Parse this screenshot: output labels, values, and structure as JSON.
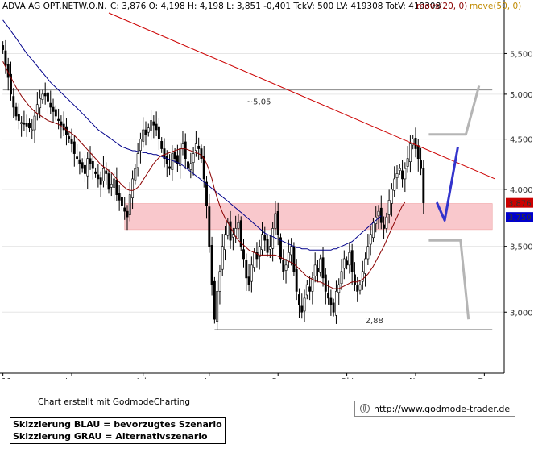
{
  "header": {
    "instrument": "ADVA AG OPT.NETW.O.N.",
    "quote": "C: 3,876  O: 4,198  H: 4,198  L: 3,851  -0,401  TckV: 500  LV: 419308  TotV: 419308",
    "mov1": "movs(20, 0)",
    "mov2": "move(50, 0)"
  },
  "colors": {
    "price": "#000000",
    "ma20": "#8b0000",
    "ma50": "#00008b",
    "trendline": "#cc0000",
    "zone": "#f9c8cc",
    "blue_scenario": "#3333cc",
    "grey_scenario": "#b5b5b5",
    "mov1_label": "#8b0000",
    "mov2_label": "#c08a00",
    "price_tag_red": "#cc0000",
    "price_tag_blue": "#0000cc"
  },
  "chart_data": {
    "type": "candlestick",
    "y_axis": {
      "min": 2.6,
      "max": 6.05,
      "scale": "log",
      "ticks": [
        "5,500",
        "5,000",
        "4,500",
        "4,000",
        "3,500",
        "3,000"
      ],
      "tick_values": [
        5.5,
        5.0,
        4.5,
        4.0,
        3.5,
        3.0
      ]
    },
    "x_axis": {
      "labels": [
        "11",
        "Jun",
        "Jul",
        "Aug",
        "Sep",
        "Okt",
        "Nov",
        "Dez"
      ],
      "label_bars": [
        0,
        26,
        53,
        78,
        104,
        130,
        156,
        182
      ],
      "bars": 190
    },
    "price_tags": [
      {
        "value": 3.876,
        "label": "3,876",
        "color": "red"
      },
      {
        "value": 3.75,
        "label": "3,750",
        "color": "blue"
      }
    ],
    "levels": [
      {
        "value": 5.05,
        "label": "~5,05",
        "label_bar": 92,
        "from_bar": 0,
        "to_bar": 185
      },
      {
        "value": 2.88,
        "label": "2,88",
        "label_bar": 137,
        "from_bar": 80,
        "to_bar": 185
      }
    ],
    "zone": {
      "low": 3.64,
      "high": 3.87,
      "from_bar": 46,
      "to_bar": 185
    },
    "trendline": {
      "from": {
        "bar": 40,
        "value": 6.05
      },
      "to": {
        "bar": 186,
        "value": 4.1
      }
    },
    "closes": [
      5.55,
      5.35,
      5.2,
      5.0,
      4.85,
      4.75,
      4.7,
      4.68,
      4.66,
      4.64,
      4.62,
      4.6,
      4.75,
      4.88,
      4.95,
      5.0,
      4.98,
      4.92,
      4.85,
      4.8,
      4.75,
      4.7,
      4.65,
      4.6,
      4.55,
      4.5,
      4.45,
      4.35,
      4.3,
      4.25,
      4.2,
      4.15,
      4.3,
      4.25,
      4.2,
      4.15,
      4.1,
      4.05,
      4.2,
      4.15,
      4.0,
      4.05,
      4.1,
      3.95,
      3.9,
      3.85,
      3.8,
      3.75,
      3.95,
      4.1,
      4.2,
      4.35,
      4.5,
      4.6,
      4.55,
      4.62,
      4.7,
      4.65,
      4.6,
      4.5,
      4.4,
      4.3,
      4.25,
      4.2,
      4.35,
      4.3,
      4.25,
      4.4,
      4.45,
      4.3,
      4.2,
      4.25,
      4.35,
      4.45,
      4.4,
      4.3,
      4.1,
      3.85,
      3.5,
      3.2,
      2.95,
      3.15,
      3.3,
      3.5,
      3.6,
      3.7,
      3.55,
      3.6,
      3.65,
      3.7,
      3.5,
      3.4,
      3.25,
      3.2,
      3.35,
      3.45,
      3.4,
      3.5,
      3.6,
      3.55,
      3.45,
      3.5,
      3.65,
      3.78,
      3.6,
      3.4,
      3.3,
      3.35,
      3.45,
      3.5,
      3.3,
      3.15,
      3.05,
      3.0,
      3.1,
      3.2,
      3.15,
      3.25,
      3.35,
      3.3,
      3.4,
      3.25,
      3.15,
      3.1,
      3.05,
      3.0,
      3.15,
      3.2,
      3.3,
      3.4,
      3.35,
      3.45,
      3.3,
      3.2,
      3.15,
      3.2,
      3.3,
      3.4,
      3.5,
      3.6,
      3.7,
      3.75,
      3.8,
      3.7,
      3.65,
      3.75,
      3.9,
      4.0,
      4.1,
      4.15,
      4.2,
      4.1,
      4.2,
      4.3,
      4.45,
      4.5,
      4.4,
      4.3,
      4.2,
      3.876
    ],
    "ma20": [
      5.4,
      5.33,
      5.26,
      5.2,
      5.14,
      5.08,
      5.03,
      4.98,
      4.94,
      4.9,
      4.86,
      4.83,
      4.8,
      4.78,
      4.76,
      4.74,
      4.72,
      4.7,
      4.69,
      4.68,
      4.67,
      4.66,
      4.64,
      4.62,
      4.6,
      4.58,
      4.56,
      4.54,
      4.51,
      4.48,
      4.45,
      4.42,
      4.39,
      4.36,
      4.33,
      4.3,
      4.27,
      4.24,
      4.22,
      4.2,
      4.18,
      4.16,
      4.13,
      4.1,
      4.07,
      4.04,
      4.02,
      4.0,
      3.99,
      3.99,
      4.0,
      4.02,
      4.05,
      4.09,
      4.13,
      4.17,
      4.21,
      4.25,
      4.28,
      4.31,
      4.33,
      4.34,
      4.35,
      4.36,
      4.37,
      4.38,
      4.39,
      4.4,
      4.4,
      4.4,
      4.39,
      4.38,
      4.37,
      4.36,
      4.35,
      4.33,
      4.3,
      4.25,
      4.18,
      4.1,
      4.0,
      3.92,
      3.85,
      3.79,
      3.74,
      3.7,
      3.66,
      3.62,
      3.58,
      3.55,
      3.53,
      3.51,
      3.49,
      3.47,
      3.46,
      3.45,
      3.44,
      3.43,
      3.43,
      3.43,
      3.43,
      3.43,
      3.43,
      3.43,
      3.42,
      3.41,
      3.4,
      3.39,
      3.38,
      3.37,
      3.36,
      3.34,
      3.32,
      3.3,
      3.28,
      3.26,
      3.25,
      3.24,
      3.23,
      3.22,
      3.22,
      3.21,
      3.2,
      3.19,
      3.18,
      3.17,
      3.17,
      3.17,
      3.18,
      3.19,
      3.2,
      3.21,
      3.22,
      3.22,
      3.22,
      3.23,
      3.24,
      3.26,
      3.28,
      3.31,
      3.34,
      3.38,
      3.42,
      3.46,
      3.5,
      3.55,
      3.6,
      3.65,
      3.7,
      3.75,
      3.8,
      3.85,
      3.88
    ],
    "ma50": [
      5.95,
      5.9,
      5.85,
      5.8,
      5.75,
      5.7,
      5.65,
      5.6,
      5.55,
      5.5,
      5.46,
      5.42,
      5.38,
      5.34,
      5.3,
      5.26,
      5.22,
      5.18,
      5.14,
      5.11,
      5.08,
      5.05,
      5.02,
      4.99,
      4.96,
      4.93,
      4.9,
      4.87,
      4.84,
      4.81,
      4.78,
      4.75,
      4.72,
      4.69,
      4.66,
      4.63,
      4.6,
      4.58,
      4.56,
      4.54,
      4.52,
      4.5,
      4.48,
      4.46,
      4.44,
      4.42,
      4.41,
      4.4,
      4.39,
      4.38,
      4.38,
      4.37,
      4.37,
      4.36,
      4.36,
      4.35,
      4.35,
      4.34,
      4.34,
      4.33,
      4.32,
      4.31,
      4.3,
      4.29,
      4.28,
      4.27,
      4.26,
      4.25,
      4.23,
      4.21,
      4.19,
      4.17,
      4.15,
      4.13,
      4.11,
      4.09,
      4.07,
      4.05,
      4.03,
      4.01,
      3.99,
      3.97,
      3.95,
      3.93,
      3.91,
      3.89,
      3.87,
      3.85,
      3.83,
      3.81,
      3.79,
      3.77,
      3.75,
      3.73,
      3.71,
      3.69,
      3.67,
      3.65,
      3.63,
      3.61,
      3.6,
      3.59,
      3.58,
      3.57,
      3.56,
      3.55,
      3.54,
      3.53,
      3.52,
      3.51,
      3.5,
      3.49,
      3.49,
      3.48,
      3.48,
      3.48,
      3.47,
      3.47,
      3.47,
      3.47,
      3.47,
      3.47,
      3.47,
      3.47,
      3.47,
      3.48,
      3.48,
      3.49,
      3.5,
      3.51,
      3.52,
      3.53,
      3.54,
      3.56,
      3.58,
      3.6,
      3.62,
      3.64,
      3.66,
      3.68,
      3.7,
      3.72,
      3.74,
      3.76
    ],
    "blue_scenario": [
      {
        "bar": 164,
        "value": 3.88
      },
      {
        "bar": 167,
        "value": 3.72
      },
      {
        "bar": 172,
        "value": 4.42
      }
    ],
    "grey_scenario": {
      "upper": [
        {
          "bar": 161,
          "value": 4.55
        },
        {
          "bar": 175,
          "value": 4.55
        },
        {
          "bar": 180,
          "value": 5.1
        }
      ],
      "lower": [
        {
          "bar": 161,
          "value": 3.55
        },
        {
          "bar": 173,
          "value": 3.55
        },
        {
          "bar": 176,
          "value": 2.95
        }
      ]
    }
  },
  "footer": {
    "credit": "Chart erstellt mit GodmodeCharting",
    "legend_blue": "Skizzierung BLAU = bevorzugtes Szenario",
    "legend_grey": "Skizzierung GRAU = Alternativszenario",
    "url": "http://www.godmode-trader.de"
  }
}
